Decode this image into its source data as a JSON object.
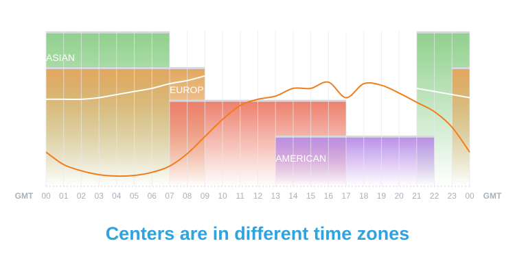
{
  "chart_data": {
    "type": "session",
    "title": "Centers are in different time zones",
    "x_label": "GMT",
    "xlim": [
      0,
      24
    ],
    "ylim": [
      0,
      100
    ],
    "grid": true,
    "xticks": [
      {
        "value": 0,
        "label": "00"
      },
      {
        "value": 1,
        "label": "01"
      },
      {
        "value": 2,
        "label": "02"
      },
      {
        "value": 3,
        "label": "03"
      },
      {
        "value": 4,
        "label": "04"
      },
      {
        "value": 5,
        "label": "05"
      },
      {
        "value": 6,
        "label": "06"
      },
      {
        "value": 7,
        "label": "07"
      },
      {
        "value": 8,
        "label": "08"
      },
      {
        "value": 9,
        "label": "09"
      },
      10,
      11,
      12,
      13,
      14,
      15,
      16,
      17,
      18,
      19,
      20,
      21,
      22,
      23,
      {
        "value": 24,
        "label": "00"
      }
    ],
    "sessions": [
      {
        "name": "ASIAN",
        "start": 21,
        "end": 7,
        "value": 99,
        "color": "#8fd08c"
      },
      {
        "name": "EUROP",
        "start": 23,
        "end": 9,
        "value": 76,
        "color": "#e3a75e"
      },
      {
        "name": null,
        "start": 7,
        "end": 17,
        "value": 55,
        "color": "#ec7f6c"
      },
      {
        "name": "AMERICAN",
        "start": 13,
        "end": 22,
        "value": 32,
        "color": "#b98ee8"
      }
    ],
    "x": [
      0,
      1,
      2,
      3,
      4,
      5,
      6,
      7,
      8,
      9,
      10,
      11,
      12,
      13,
      14,
      15,
      16,
      17,
      18,
      19,
      20,
      21,
      22,
      23,
      24
    ],
    "series": [
      {
        "color": "#f07d1a",
        "values": [
          22,
          14,
          10,
          7.5,
          6.6,
          7,
          9,
          13,
          21,
          32,
          43,
          52,
          56,
          58,
          63,
          63,
          67,
          57,
          66,
          65,
          60,
          54,
          48,
          38,
          22
        ]
      },
      {
        "color": "#ffffff",
        "values": [
          56,
          56,
          56,
          57,
          59,
          61,
          63,
          66,
          68,
          71,
          null,
          null,
          null,
          null,
          null,
          null,
          null,
          null,
          null,
          null,
          null,
          63,
          61,
          59,
          57
        ]
      }
    ]
  }
}
